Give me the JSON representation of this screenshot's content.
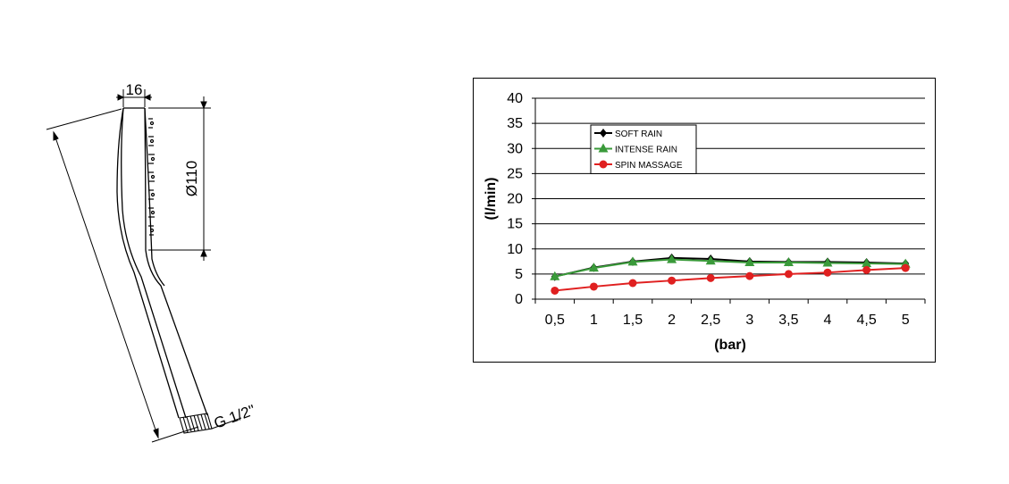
{
  "drawing": {
    "width_label": "16",
    "diameter_label": "Ø110",
    "thread_label": "G 1/2\""
  },
  "chart_data": {
    "type": "line",
    "categories": [
      "0,5",
      "1",
      "1,5",
      "2",
      "2,5",
      "3",
      "3,5",
      "4",
      "4,5",
      "5"
    ],
    "x": [
      0.5,
      1,
      1.5,
      2,
      2.5,
      3,
      3.5,
      4,
      4.5,
      5
    ],
    "series": [
      {
        "name": "SOFT RAIN",
        "color": "#000000",
        "marker": "diamond",
        "values": [
          4.5,
          6.3,
          7.5,
          8.2,
          8.0,
          7.5,
          7.4,
          7.4,
          7.3,
          7.1
        ]
      },
      {
        "name": "INTENSE RAIN",
        "color": "#3a9a3a",
        "marker": "triangle",
        "values": [
          4.5,
          6.2,
          7.4,
          7.9,
          7.6,
          7.3,
          7.3,
          7.2,
          7.1,
          7.0
        ]
      },
      {
        "name": "SPIN MASSAGE",
        "color": "#e02020",
        "marker": "circle",
        "values": [
          1.7,
          2.5,
          3.2,
          3.7,
          4.2,
          4.6,
          5.0,
          5.3,
          5.8,
          6.2
        ]
      }
    ],
    "yticks": [
      "0",
      "5",
      "10",
      "15",
      "20",
      "25",
      "30",
      "35",
      "40"
    ],
    "ylim": [
      0,
      40
    ],
    "xlabel": "(bar)",
    "ylabel": "(l/min)",
    "grid": true,
    "legend_position": "top-left"
  }
}
